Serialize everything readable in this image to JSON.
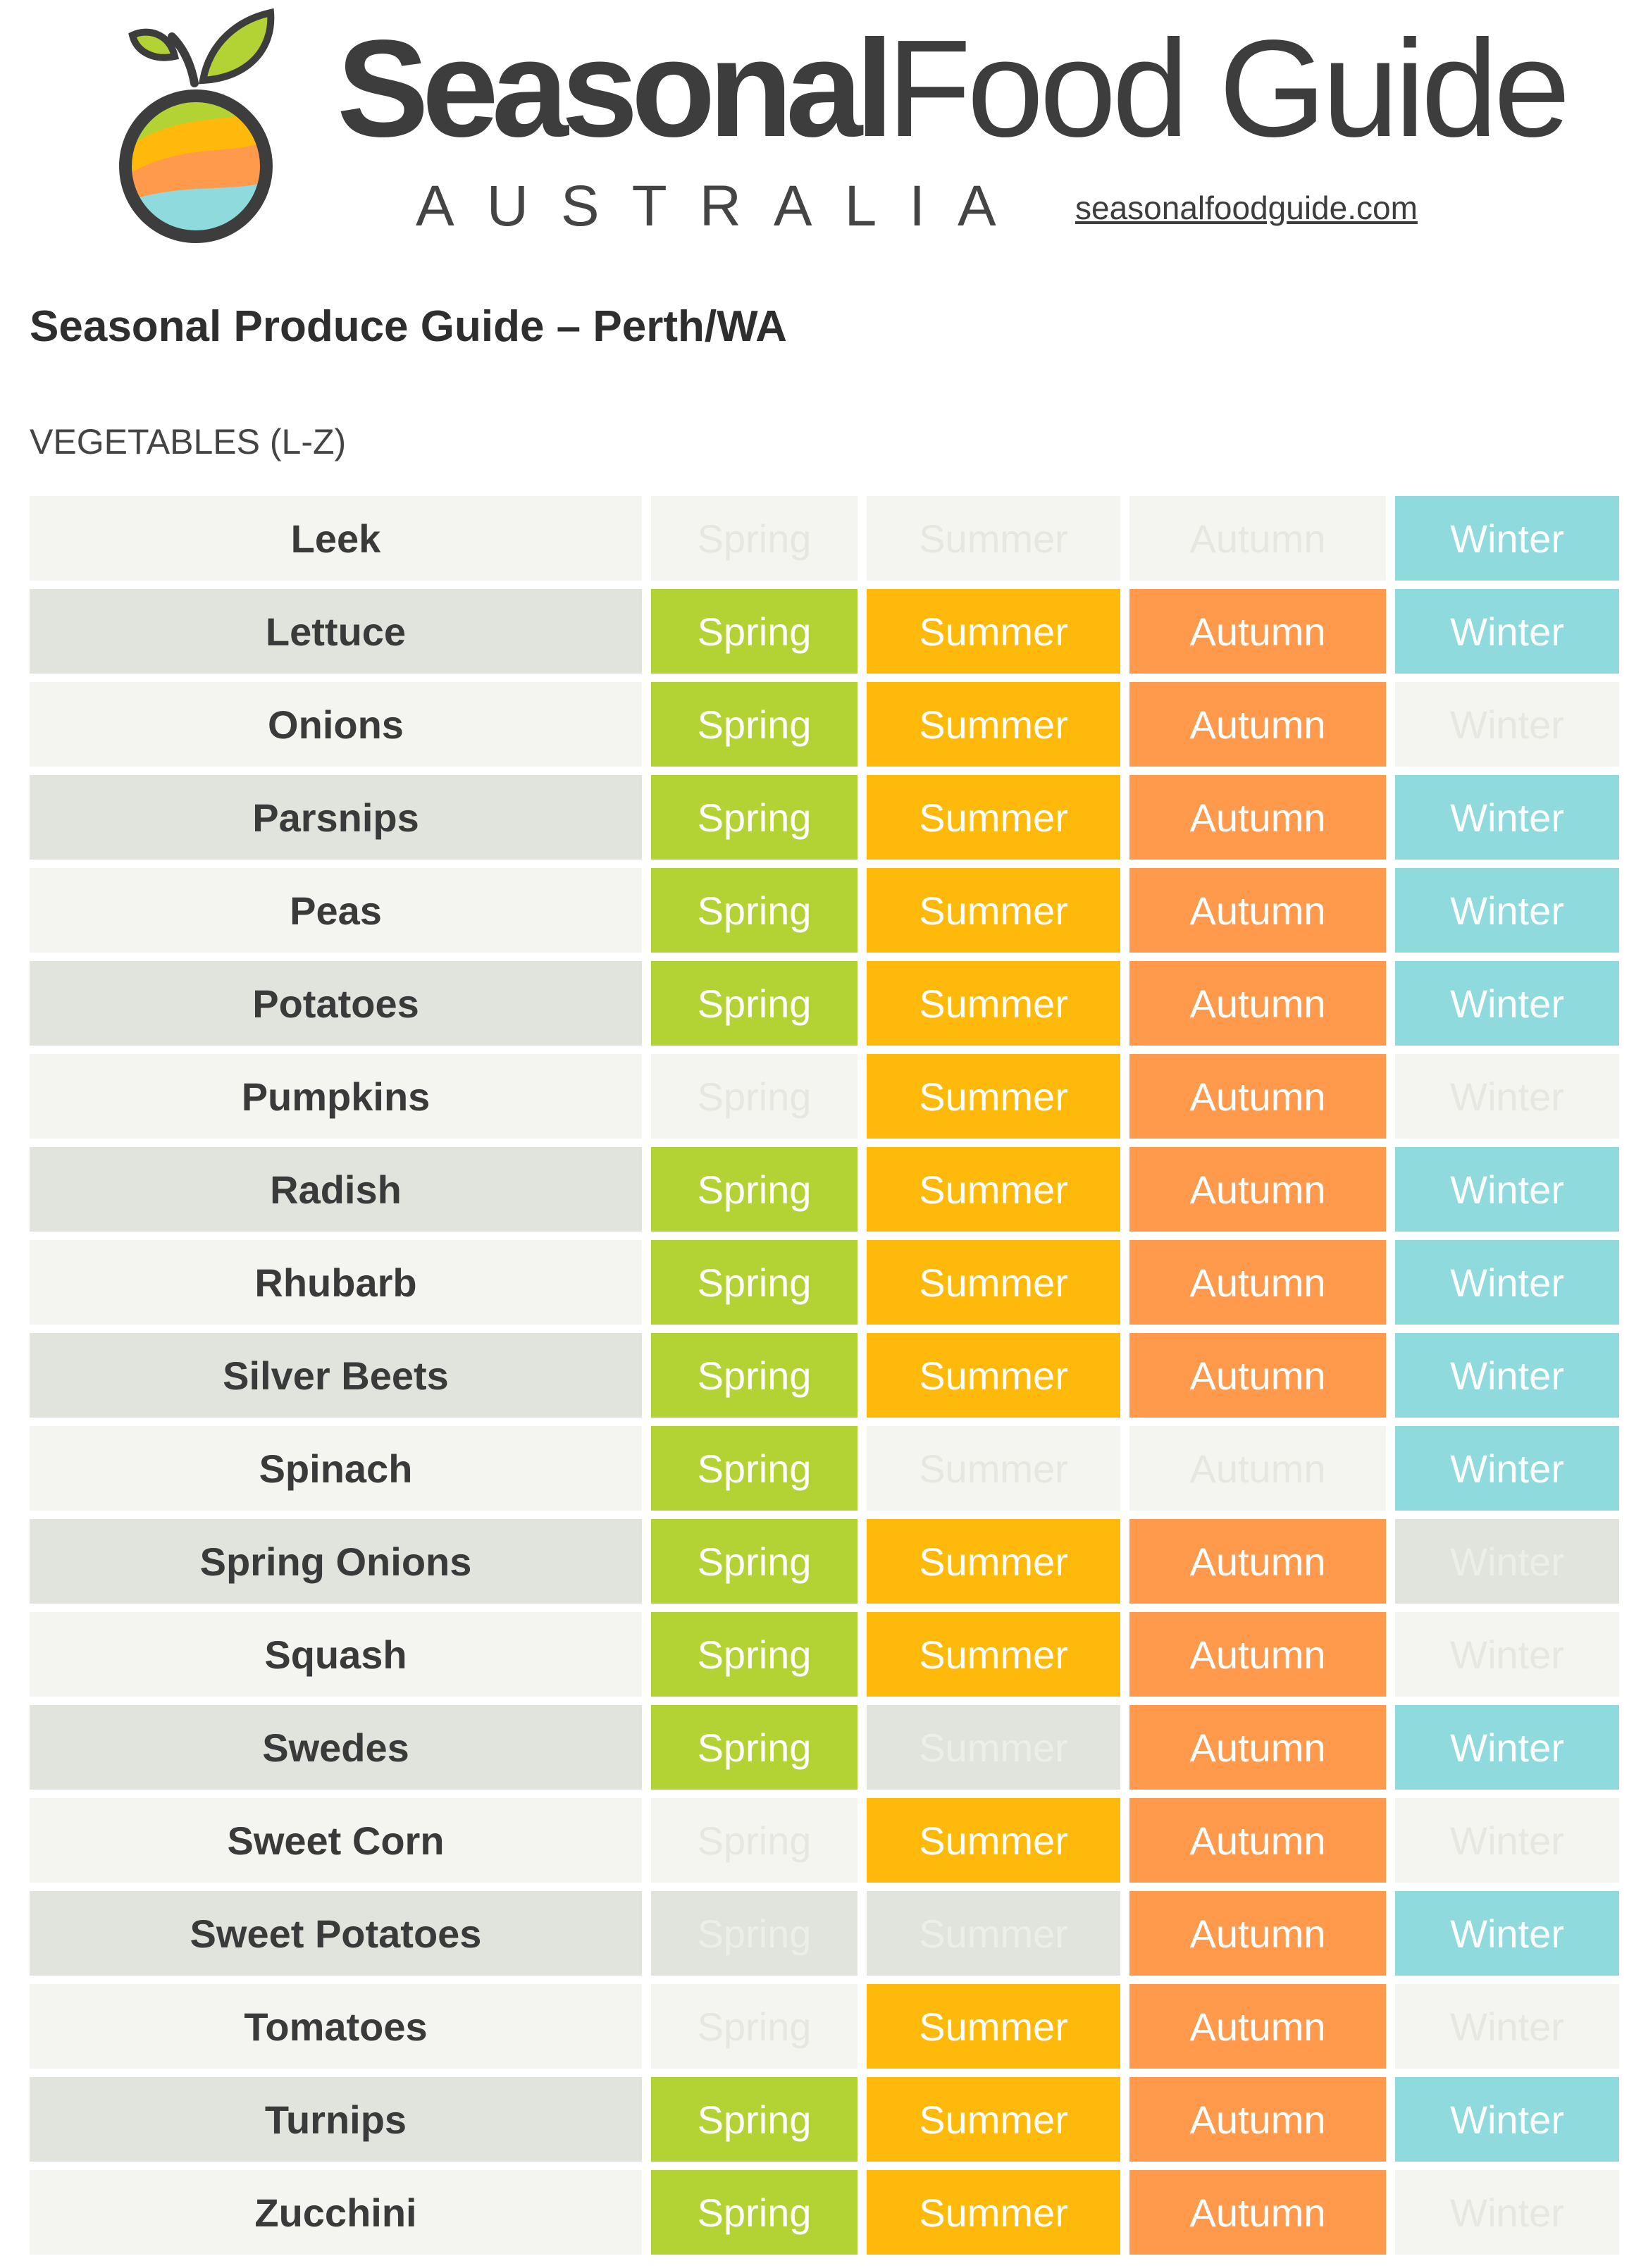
{
  "brand": {
    "title_bold": "Seasonal",
    "title_regular": "Food Guide",
    "country": "AUSTRALIA",
    "site": "seasonalfoodguide.com"
  },
  "guide_title": "Seasonal Produce Guide – Perth/WA",
  "section_label": "VEGETABLES (L-Z)",
  "seasons": [
    "Spring",
    "Summer",
    "Autumn",
    "Winter"
  ],
  "colors": {
    "Spring": "#b3d334",
    "Summer": "#ffb90b",
    "Autumn": "#ff9a4c",
    "Winter": "#8fdadd",
    "row_light": "#f4f5f0",
    "row_dark": "#e1e4dc"
  },
  "rows": [
    {
      "name": "Leek",
      "in": [
        false,
        false,
        false,
        true
      ]
    },
    {
      "name": "Lettuce",
      "in": [
        true,
        true,
        true,
        true
      ]
    },
    {
      "name": "Onions",
      "in": [
        true,
        true,
        true,
        false
      ]
    },
    {
      "name": "Parsnips",
      "in": [
        true,
        true,
        true,
        true
      ]
    },
    {
      "name": "Peas",
      "in": [
        true,
        true,
        true,
        true
      ]
    },
    {
      "name": "Potatoes",
      "in": [
        true,
        true,
        true,
        true
      ]
    },
    {
      "name": "Pumpkins",
      "in": [
        false,
        true,
        true,
        false
      ]
    },
    {
      "name": "Radish",
      "in": [
        true,
        true,
        true,
        true
      ]
    },
    {
      "name": "Rhubarb",
      "in": [
        true,
        true,
        true,
        true
      ]
    },
    {
      "name": "Silver Beets",
      "in": [
        true,
        true,
        true,
        true
      ]
    },
    {
      "name": "Spinach",
      "in": [
        true,
        false,
        false,
        true
      ]
    },
    {
      "name": "Spring Onions",
      "in": [
        true,
        true,
        true,
        false
      ]
    },
    {
      "name": "Squash",
      "in": [
        true,
        true,
        true,
        false
      ]
    },
    {
      "name": "Swedes",
      "in": [
        true,
        false,
        true,
        true
      ]
    },
    {
      "name": "Sweet Corn",
      "in": [
        false,
        true,
        true,
        false
      ]
    },
    {
      "name": "Sweet Potatoes",
      "in": [
        false,
        false,
        true,
        true
      ]
    },
    {
      "name": "Tomatoes",
      "in": [
        false,
        true,
        true,
        false
      ]
    },
    {
      "name": "Turnips",
      "in": [
        true,
        true,
        true,
        true
      ]
    },
    {
      "name": "Zucchini",
      "in": [
        true,
        true,
        true,
        false
      ]
    }
  ]
}
